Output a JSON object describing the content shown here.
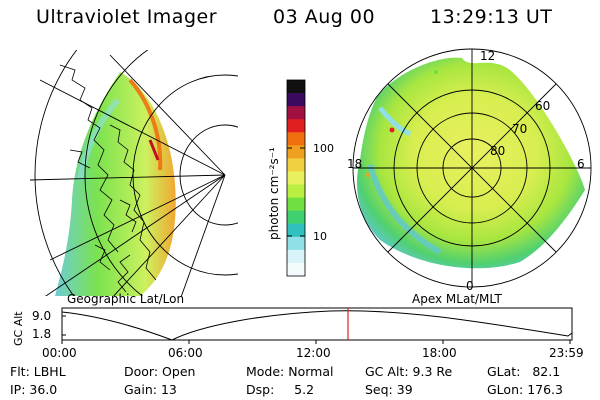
{
  "header": {
    "title": "Ultraviolet Imager",
    "date": "03 Aug 00",
    "time": "13:29:13 UT"
  },
  "panels": {
    "left_label": "Geographic Lat/Lon",
    "right_label": "Apex MLat/MLT"
  },
  "polar_plot": {
    "mlt_labels": [
      "12",
      "18",
      "6",
      "0"
    ],
    "lat_labels": [
      "60",
      "70",
      "80"
    ]
  },
  "colorbar": {
    "unit_label": "photon cm⁻²s⁻¹",
    "ticks": [
      "100",
      "10"
    ],
    "colors": [
      "#101010",
      "#3a0a60",
      "#a01040",
      "#e02020",
      "#f07010",
      "#f0a020",
      "#f0d040",
      "#e8f060",
      "#b8ef40",
      "#70e040",
      "#40d070",
      "#30c0c0",
      "#90e0e8",
      "#d8f4f8",
      "#f4fbfd"
    ]
  },
  "gc_alt_plot": {
    "axis_label": "GC Alt",
    "y_ticks": [
      "9.0",
      "1.8"
    ],
    "x_ticks": [
      "00:00",
      "06:00",
      "12:00",
      "18:00",
      "23:59"
    ],
    "current_time_fraction": 0.563
  },
  "info": {
    "filter_label": "Flt:",
    "filter_value": "LBHL",
    "ip_label": "IP:",
    "ip_value": "36.0",
    "door_label": "Door:",
    "door_value": "Open",
    "gain_label": "Gain:",
    "gain_value": "13",
    "mode_label": "Mode:",
    "mode_value": "Normal",
    "dsp_label": "Dsp:",
    "dsp_value": "5.2",
    "gcalt_label": "GC Alt:",
    "gcalt_value": "9.3 Re",
    "seq_label": "Seq:",
    "seq_value": "39",
    "glat_label": "GLat:",
    "glat_value": "82.1",
    "glon_label": "GLon:",
    "glon_value": "176.3"
  }
}
